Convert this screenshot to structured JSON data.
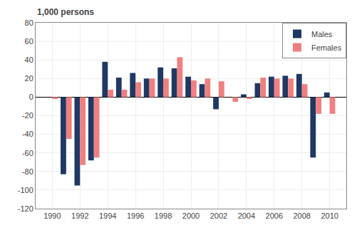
{
  "chart_data": {
    "type": "bar",
    "ylabel": "1,000 persons",
    "x": [
      1990,
      1991,
      1992,
      1993,
      1994,
      1995,
      1996,
      1997,
      1998,
      1999,
      2000,
      2001,
      2002,
      2003,
      2004,
      2005,
      2006,
      2007,
      2008,
      2009,
      2010
    ],
    "series": [
      {
        "name": "Males",
        "color": "#1f3864",
        "values": [
          0,
          -83,
          -95,
          -68,
          38,
          21,
          26,
          20,
          32,
          31,
          22,
          14,
          -13,
          0,
          3,
          15,
          22,
          23,
          25,
          -65,
          5
        ]
      },
      {
        "name": "Females",
        "color": "#f08080",
        "values": [
          -2,
          -45,
          -73,
          -65,
          8,
          8,
          16,
          20,
          20,
          43,
          18,
          20,
          17,
          -5,
          -2,
          21,
          20,
          20,
          14,
          -18,
          -18
        ]
      }
    ],
    "xlim": [
      1988.8,
      2011.2
    ],
    "xticks": [
      1990,
      1992,
      1994,
      1996,
      1998,
      2000,
      2002,
      2004,
      2006,
      2008,
      2010
    ],
    "ylim": [
      -120,
      80
    ],
    "yticks": [
      -120,
      -100,
      -80,
      -60,
      -40,
      -20,
      0,
      20,
      40,
      60,
      80
    ],
    "grid": true,
    "legend": "upper right"
  }
}
